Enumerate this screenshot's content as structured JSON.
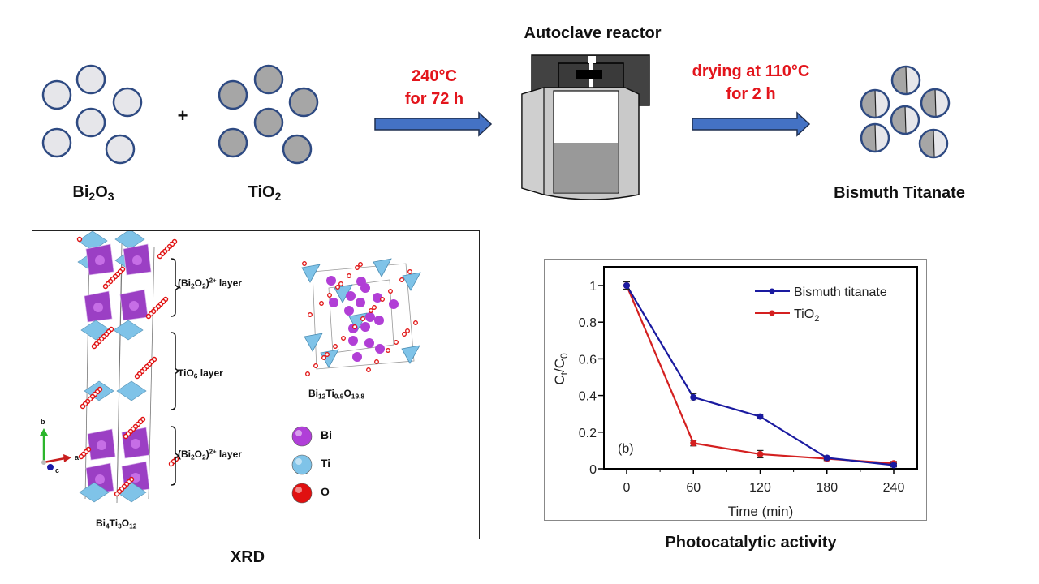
{
  "scheme": {
    "reactant1": {
      "base": "Bi",
      "s1": "2",
      "mid": "O",
      "s2": "3"
    },
    "plus": "+",
    "reactant2": {
      "base": "TiO",
      "s1": "2"
    },
    "step1": {
      "line1": "240°C",
      "line2": "for 72 h"
    },
    "reactor_title": "Autoclave reactor",
    "step2": {
      "line1": "drying at 110°C",
      "line2": "for 2 h"
    },
    "product": "Bismuth Titanate"
  },
  "xrd": {
    "caption": "XRD",
    "layers": [
      {
        "pre": "(Bi",
        "s1": "2",
        "mid": "O",
        "s2": "2",
        "post": ")",
        "sup": "2+",
        "tail": " layer"
      },
      {
        "pre": "TiO",
        "s1": "6",
        "tail": " layer"
      },
      {
        "pre": "(Bi",
        "s1": "2",
        "mid": "O",
        "s2": "2",
        "post": ")",
        "sup": "2+",
        "tail": " layer"
      }
    ],
    "formula1": {
      "a": "Bi",
      "a1": "4",
      "b": "Ti",
      "b1": "3",
      "c": "O",
      "c1": "12"
    },
    "formula2": {
      "a": "Bi",
      "a1": "12",
      "b": "Ti",
      "b1": "0.9",
      "c": "O",
      "c1": "19.8"
    },
    "axes": {
      "b": "b",
      "a": "a",
      "c": "c"
    },
    "legend": [
      {
        "label": "Bi",
        "color": "#b03fd8"
      },
      {
        "label": "Ti",
        "color": "#7fc3e8"
      },
      {
        "label": "O",
        "color": "#e01010"
      }
    ]
  },
  "photo": {
    "caption": "Photocatalytic activity"
  },
  "chart_data": {
    "type": "line",
    "x": [
      0,
      60,
      120,
      180,
      240
    ],
    "series": [
      {
        "name": "Bismuth titanate",
        "color": "#1a1aa0",
        "values": [
          1.0,
          0.39,
          0.285,
          0.06,
          0.02
        ],
        "errors": [
          0.02,
          0.02,
          0.012,
          0.01,
          0.01
        ]
      },
      {
        "name": "TiO2",
        "color": "#d42020",
        "values": [
          1.0,
          0.14,
          0.08,
          0.055,
          0.03
        ],
        "errors": [
          0.02,
          0.015,
          0.02,
          0.01,
          0.01
        ]
      }
    ],
    "legend_labels": {
      "s0": "Bismuth titanate",
      "s1_base": "TiO",
      "s1_sub": "2"
    },
    "xlabel": "Time (min)",
    "ylabel": {
      "a": "C",
      "a_sub": "t",
      "slash": "/C",
      "b_sub": "0"
    },
    "xticks": [
      "0",
      "60",
      "120",
      "180",
      "240"
    ],
    "yticks": [
      "0",
      "0.2",
      "0.4",
      "0.6",
      "0.8",
      "1"
    ],
    "xlim": [
      -20,
      258
    ],
    "ylim": [
      0,
      1.1
    ],
    "annotation": "(b)",
    "legend_position": "top-right"
  }
}
